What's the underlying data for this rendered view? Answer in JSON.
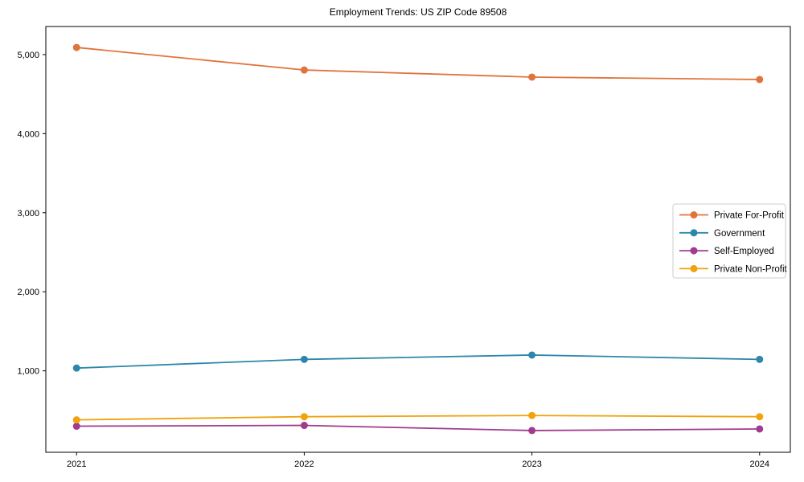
{
  "chart_data": {
    "type": "line",
    "title": "Employment Trends: US ZIP Code 89508",
    "categories": [
      2021,
      2022,
      2023,
      2024
    ],
    "x_tick_labels": [
      "2021",
      "2022",
      "2023",
      "2024"
    ],
    "series": [
      {
        "name": "Private For-Profit",
        "color": "#E0743C",
        "values": [
          5090,
          4805,
          4715,
          4685
        ]
      },
      {
        "name": "Government",
        "color": "#2D87AA",
        "values": [
          1035,
          1145,
          1200,
          1145
        ]
      },
      {
        "name": "Self-Employed",
        "color": "#A03B8D",
        "values": [
          300,
          310,
          245,
          265
        ]
      },
      {
        "name": "Private Non-Profit",
        "color": "#F0A30B",
        "values": [
          380,
          420,
          435,
          420
        ]
      }
    ],
    "xlabel": "",
    "ylabel": "",
    "y_ticks": [
      1000,
      2000,
      3000,
      4000,
      5000
    ],
    "y_tick_labels": [
      "1,000",
      "2,000",
      "3,000",
      "4,000",
      "5,000"
    ],
    "ylim": [
      -30,
      5355
    ],
    "xlim": [
      2020.865,
      2024.135
    ],
    "grid": false,
    "legend_position": "center-right",
    "legend_border_color": "#cccccc",
    "axis_color": "#000000",
    "marker": "circle"
  }
}
